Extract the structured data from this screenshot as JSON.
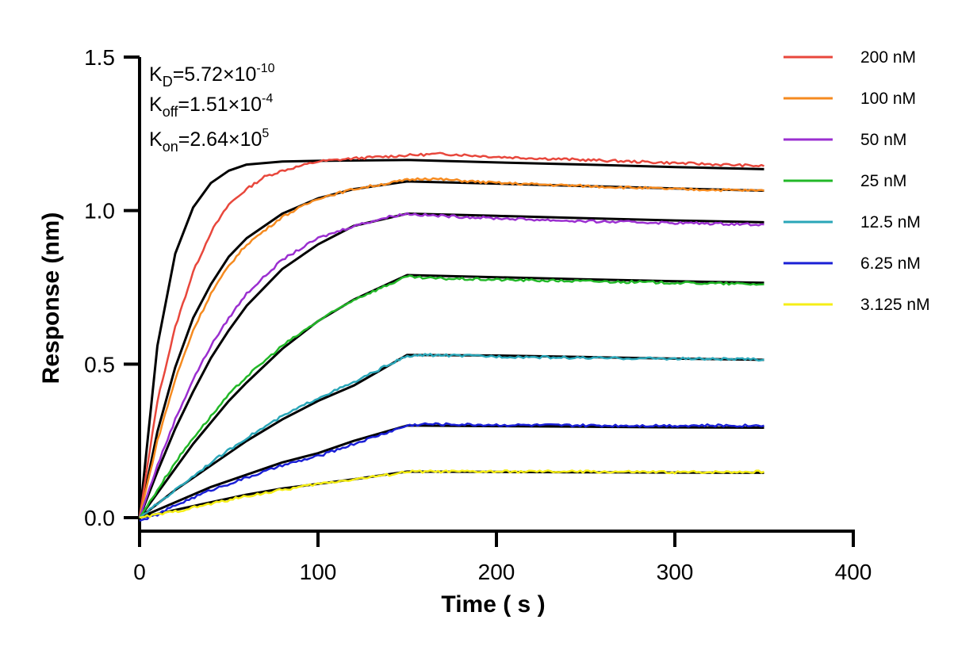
{
  "chart_data": {
    "type": "line",
    "title": "",
    "xlabel": "Time ( s )",
    "ylabel": "Response (nm)",
    "xlim": [
      0,
      400
    ],
    "ylim": [
      0,
      1.5
    ],
    "x_ticks": [
      0,
      100,
      200,
      300,
      400
    ],
    "x_tick_labels": [
      "0",
      "100",
      "200",
      "300",
      "400"
    ],
    "y_ticks": [
      0,
      0.5,
      1.0,
      1.5
    ],
    "y_tick_labels": [
      "0.0",
      "0.5",
      "1.0",
      "1.5"
    ],
    "grid": false,
    "legend_position": "right",
    "kinetics": {
      "kd": {
        "sym": "K",
        "sub": "D",
        "mant": "=5.72×10",
        "exp": "-10"
      },
      "koff": {
        "sym": "K",
        "sub": "off",
        "mant": "=1.51×10",
        "exp": "-4"
      },
      "kon": {
        "sym": "K",
        "sub": "on",
        "mant": "=2.64×10",
        "exp": "5"
      }
    },
    "association_end": 150,
    "end_time": 350,
    "series": [
      {
        "name": "200 nM",
        "color": "#e8473c",
        "measured": [
          [
            0,
            0
          ],
          [
            10,
            0.38
          ],
          [
            20,
            0.62
          ],
          [
            30,
            0.8
          ],
          [
            40,
            0.93
          ],
          [
            50,
            1.02
          ],
          [
            60,
            1.07
          ],
          [
            70,
            1.11
          ],
          [
            80,
            1.13
          ],
          [
            100,
            1.16
          ],
          [
            120,
            1.17
          ],
          [
            150,
            1.18
          ],
          [
            170,
            1.185
          ],
          [
            200,
            1.175
          ],
          [
            250,
            1.165
          ],
          [
            300,
            1.155
          ],
          [
            350,
            1.145
          ]
        ],
        "fit": [
          [
            0,
            0
          ],
          [
            10,
            0.56
          ],
          [
            20,
            0.86
          ],
          [
            30,
            1.01
          ],
          [
            40,
            1.09
          ],
          [
            50,
            1.13
          ],
          [
            60,
            1.15
          ],
          [
            80,
            1.16
          ],
          [
            100,
            1.162
          ],
          [
            150,
            1.165
          ],
          [
            200,
            1.157
          ],
          [
            250,
            1.15
          ],
          [
            300,
            1.142
          ],
          [
            350,
            1.135
          ]
        ]
      },
      {
        "name": "100 nM",
        "color": "#f58a1f",
        "measured": [
          [
            0,
            0
          ],
          [
            10,
            0.25
          ],
          [
            20,
            0.45
          ],
          [
            30,
            0.61
          ],
          [
            40,
            0.73
          ],
          [
            50,
            0.82
          ],
          [
            60,
            0.89
          ],
          [
            80,
            0.98
          ],
          [
            100,
            1.04
          ],
          [
            120,
            1.07
          ],
          [
            140,
            1.09
          ],
          [
            150,
            1.1
          ],
          [
            160,
            1.105
          ],
          [
            200,
            1.09
          ],
          [
            250,
            1.08
          ],
          [
            300,
            1.07
          ],
          [
            350,
            1.065
          ]
        ],
        "fit": [
          [
            0,
            0
          ],
          [
            10,
            0.28
          ],
          [
            20,
            0.49
          ],
          [
            30,
            0.65
          ],
          [
            40,
            0.76
          ],
          [
            50,
            0.85
          ],
          [
            60,
            0.91
          ],
          [
            80,
            0.99
          ],
          [
            100,
            1.04
          ],
          [
            120,
            1.07
          ],
          [
            150,
            1.095
          ],
          [
            200,
            1.088
          ],
          [
            250,
            1.08
          ],
          [
            300,
            1.072
          ],
          [
            350,
            1.065
          ]
        ]
      },
      {
        "name": "50 nM",
        "color": "#9b2fd0",
        "measured": [
          [
            0,
            0
          ],
          [
            10,
            0.17
          ],
          [
            20,
            0.32
          ],
          [
            30,
            0.45
          ],
          [
            40,
            0.56
          ],
          [
            50,
            0.65
          ],
          [
            60,
            0.73
          ],
          [
            80,
            0.84
          ],
          [
            100,
            0.91
          ],
          [
            120,
            0.95
          ],
          [
            140,
            0.98
          ],
          [
            150,
            0.99
          ],
          [
            160,
            0.985
          ],
          [
            200,
            0.975
          ],
          [
            250,
            0.965
          ],
          [
            300,
            0.96
          ],
          [
            350,
            0.955
          ]
        ],
        "fit": [
          [
            0,
            0
          ],
          [
            10,
            0.15
          ],
          [
            20,
            0.29
          ],
          [
            30,
            0.41
          ],
          [
            40,
            0.52
          ],
          [
            50,
            0.61
          ],
          [
            60,
            0.69
          ],
          [
            80,
            0.81
          ],
          [
            100,
            0.89
          ],
          [
            120,
            0.95
          ],
          [
            150,
            0.99
          ],
          [
            200,
            0.983
          ],
          [
            250,
            0.975
          ],
          [
            300,
            0.968
          ],
          [
            350,
            0.962
          ]
        ]
      },
      {
        "name": "25 nM",
        "color": "#22b828",
        "measured": [
          [
            0,
            0
          ],
          [
            10,
            0.09
          ],
          [
            20,
            0.18
          ],
          [
            30,
            0.26
          ],
          [
            40,
            0.33
          ],
          [
            50,
            0.4
          ],
          [
            60,
            0.46
          ],
          [
            80,
            0.56
          ],
          [
            100,
            0.64
          ],
          [
            120,
            0.71
          ],
          [
            140,
            0.76
          ],
          [
            150,
            0.785
          ],
          [
            160,
            0.78
          ],
          [
            200,
            0.775
          ],
          [
            250,
            0.77
          ],
          [
            300,
            0.765
          ],
          [
            350,
            0.76
          ]
        ],
        "fit": [
          [
            0,
            0
          ],
          [
            10,
            0.08
          ],
          [
            20,
            0.16
          ],
          [
            30,
            0.24
          ],
          [
            40,
            0.31
          ],
          [
            50,
            0.38
          ],
          [
            60,
            0.44
          ],
          [
            80,
            0.55
          ],
          [
            100,
            0.64
          ],
          [
            120,
            0.71
          ],
          [
            150,
            0.79
          ],
          [
            200,
            0.783
          ],
          [
            250,
            0.776
          ],
          [
            300,
            0.77
          ],
          [
            350,
            0.765
          ]
        ]
      },
      {
        "name": "12.5 nM",
        "color": "#2aa6b8",
        "measured": [
          [
            0,
            0
          ],
          [
            10,
            0.045
          ],
          [
            20,
            0.09
          ],
          [
            40,
            0.18
          ],
          [
            60,
            0.26
          ],
          [
            80,
            0.33
          ],
          [
            100,
            0.39
          ],
          [
            120,
            0.44
          ],
          [
            140,
            0.5
          ],
          [
            150,
            0.525
          ],
          [
            160,
            0.53
          ],
          [
            200,
            0.525
          ],
          [
            250,
            0.52
          ],
          [
            300,
            0.518
          ],
          [
            350,
            0.515
          ]
        ],
        "fit": [
          [
            0,
            0
          ],
          [
            10,
            0.045
          ],
          [
            20,
            0.09
          ],
          [
            40,
            0.17
          ],
          [
            60,
            0.25
          ],
          [
            80,
            0.32
          ],
          [
            100,
            0.38
          ],
          [
            120,
            0.43
          ],
          [
            150,
            0.53
          ],
          [
            200,
            0.528
          ],
          [
            250,
            0.523
          ],
          [
            300,
            0.518
          ],
          [
            350,
            0.514
          ]
        ]
      },
      {
        "name": "6.25 nM",
        "color": "#1a1fd6",
        "measured": [
          [
            0,
            -0.01
          ],
          [
            10,
            0.01
          ],
          [
            20,
            0.04
          ],
          [
            40,
            0.09
          ],
          [
            60,
            0.13
          ],
          [
            80,
            0.17
          ],
          [
            100,
            0.2
          ],
          [
            120,
            0.24
          ],
          [
            140,
            0.28
          ],
          [
            150,
            0.3
          ],
          [
            160,
            0.305
          ],
          [
            200,
            0.302
          ],
          [
            250,
            0.3
          ],
          [
            300,
            0.3
          ],
          [
            350,
            0.3
          ]
        ],
        "fit": [
          [
            0,
            0
          ],
          [
            10,
            0.025
          ],
          [
            20,
            0.05
          ],
          [
            40,
            0.1
          ],
          [
            60,
            0.14
          ],
          [
            80,
            0.18
          ],
          [
            100,
            0.21
          ],
          [
            120,
            0.25
          ],
          [
            150,
            0.3
          ],
          [
            200,
            0.298
          ],
          [
            250,
            0.296
          ],
          [
            300,
            0.294
          ],
          [
            350,
            0.293
          ]
        ]
      },
      {
        "name": "3.125 nM",
        "color": "#f5ee16",
        "measured": [
          [
            0,
            0
          ],
          [
            10,
            0.01
          ],
          [
            20,
            0.02
          ],
          [
            40,
            0.045
          ],
          [
            60,
            0.07
          ],
          [
            80,
            0.09
          ],
          [
            100,
            0.11
          ],
          [
            120,
            0.125
          ],
          [
            140,
            0.14
          ],
          [
            150,
            0.15
          ],
          [
            160,
            0.15
          ],
          [
            200,
            0.15
          ],
          [
            250,
            0.15
          ],
          [
            300,
            0.148
          ],
          [
            350,
            0.15
          ]
        ],
        "fit": [
          [
            0,
            0
          ],
          [
            10,
            0.012
          ],
          [
            20,
            0.025
          ],
          [
            40,
            0.05
          ],
          [
            60,
            0.075
          ],
          [
            80,
            0.095
          ],
          [
            100,
            0.11
          ],
          [
            120,
            0.125
          ],
          [
            150,
            0.15
          ],
          [
            200,
            0.149
          ],
          [
            250,
            0.148
          ],
          [
            300,
            0.147
          ],
          [
            350,
            0.146
          ]
        ]
      }
    ],
    "fit_color": "#000000"
  }
}
